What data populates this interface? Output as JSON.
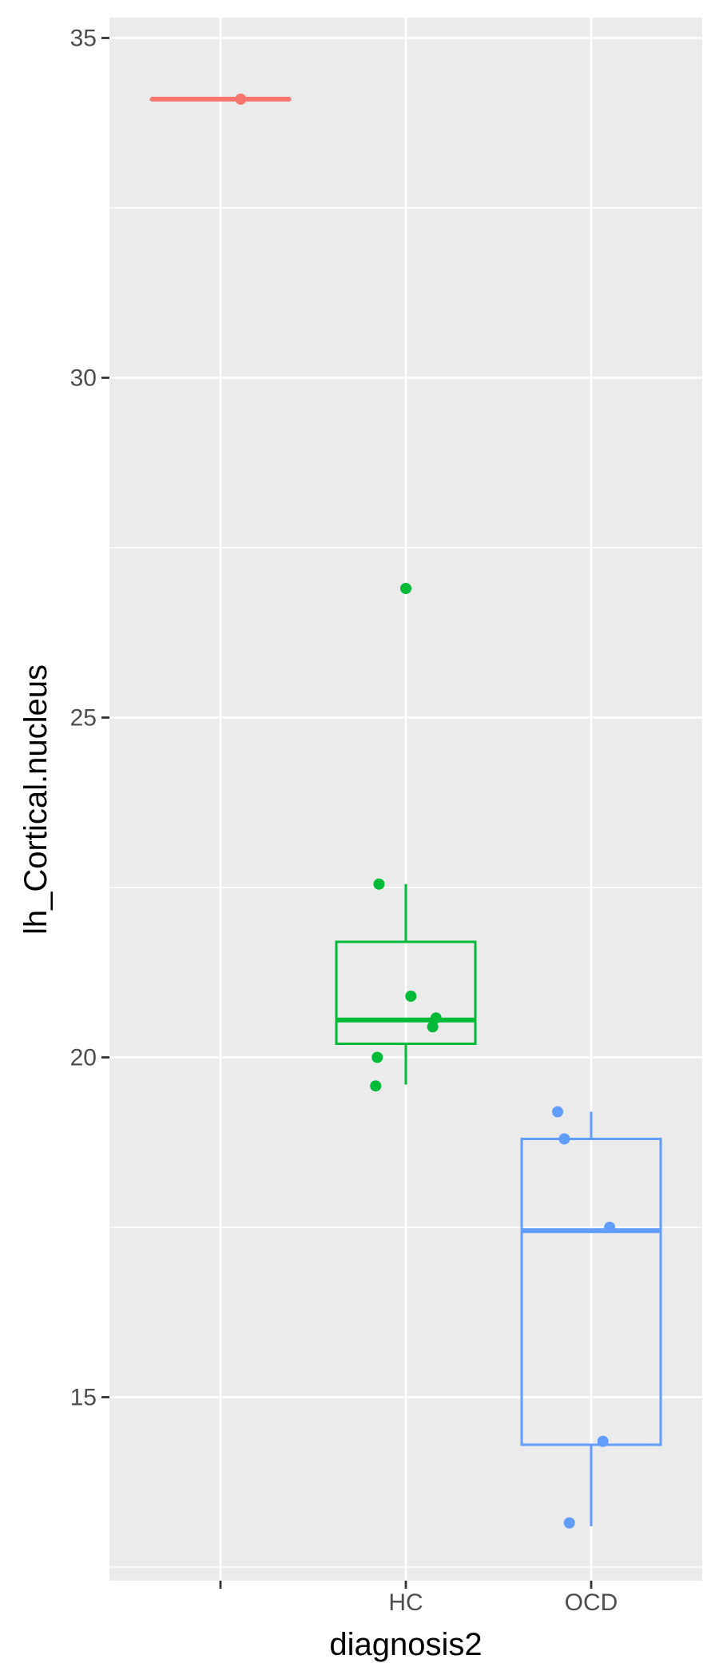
{
  "chart_data": {
    "type": "box",
    "xlabel": "diagnosis2",
    "ylabel": "lh_Cortical.nucleus",
    "categories": [
      "",
      "HC",
      "OCD"
    ],
    "ylim": [
      12.3,
      35.3
    ],
    "y_ticks": [
      15,
      20,
      25,
      30,
      35
    ],
    "grid": true,
    "legend": "none",
    "groups": [
      {
        "category": "",
        "color": "#F8766D",
        "box": {
          "lower_whisker": 34.1,
          "q1": 34.1,
          "median": 34.1,
          "q3": 34.1,
          "upper_whisker": 34.1
        },
        "points": [
          [
            0.12,
            34.1
          ]
        ]
      },
      {
        "category": "HC",
        "color": "#00BA38",
        "box": {
          "lower_whisker": 19.6,
          "q1": 20.2,
          "median": 20.55,
          "q3": 21.7,
          "upper_whisker": 22.55
        },
        "points": [
          [
            0.0,
            26.9
          ],
          [
            -0.16,
            22.55
          ],
          [
            0.03,
            20.9
          ],
          [
            0.18,
            20.58
          ],
          [
            0.16,
            20.45
          ],
          [
            -0.17,
            20.0
          ],
          [
            -0.18,
            19.58
          ]
        ]
      },
      {
        "category": "OCD",
        "color": "#619CFF",
        "box": {
          "lower_whisker": 13.1,
          "q1": 14.3,
          "median": 17.45,
          "q3": 18.8,
          "upper_whisker": 19.2
        },
        "points": [
          [
            -0.2,
            19.2
          ],
          [
            -0.16,
            18.8
          ],
          [
            0.11,
            17.5
          ],
          [
            0.07,
            14.35
          ],
          [
            -0.13,
            13.15
          ]
        ]
      }
    ]
  }
}
